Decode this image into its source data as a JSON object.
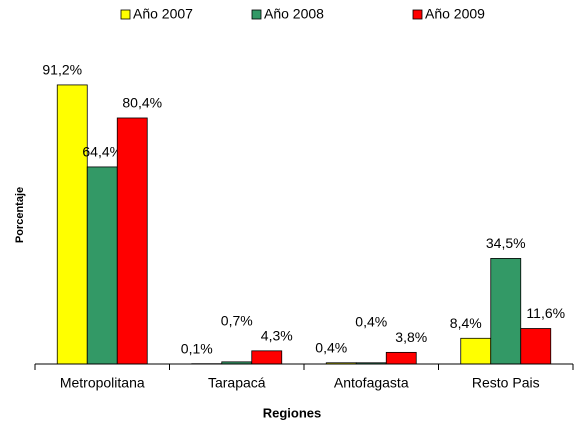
{
  "chart_data": {
    "type": "bar",
    "x_label": "Regiones",
    "y_label": "Porcentaje",
    "categories": [
      "Metropolitana",
      "Tarapacá",
      "Antofagasta",
      "Resto Pais"
    ],
    "series": [
      {
        "name": "Año 2007",
        "color": "#ffff00",
        "values": [
          91.2,
          0.1,
          0.4,
          8.4
        ],
        "value_labels": [
          "91,2%",
          "0,1%",
          "0,4%",
          "8,4%"
        ]
      },
      {
        "name": "Año 2008",
        "color": "#339966",
        "values": [
          64.4,
          0.7,
          0.4,
          34.5
        ],
        "value_labels": [
          "64,4%",
          "0,7%",
          "0,4%",
          "34,5%"
        ]
      },
      {
        "name": "Año 2009",
        "color": "#ff0000",
        "values": [
          80.4,
          4.3,
          3.8,
          11.6
        ],
        "value_labels": [
          "80,4%",
          "4,3%",
          "3,8%",
          "11,6%"
        ]
      }
    ],
    "legend": "top"
  }
}
